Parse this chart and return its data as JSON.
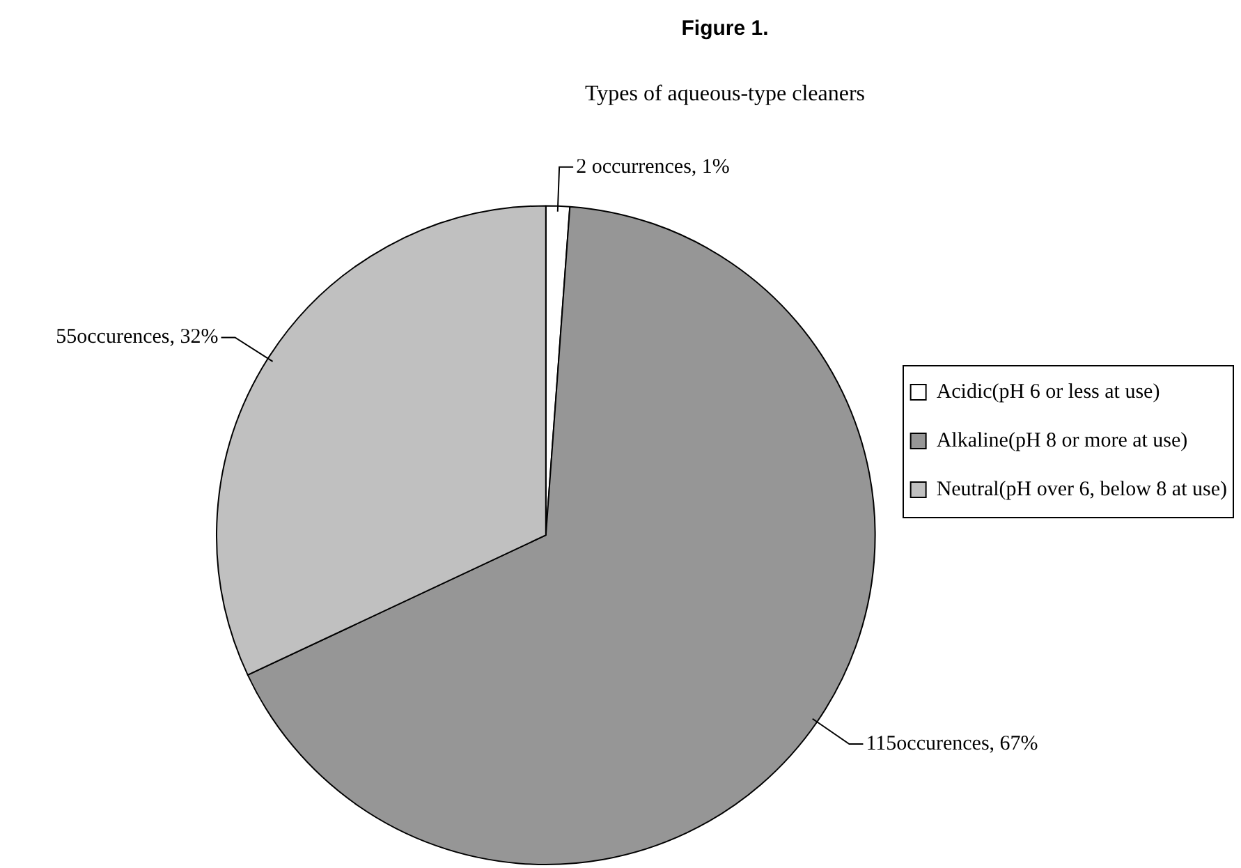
{
  "chart_data": {
    "type": "pie",
    "title": "Figure 1.",
    "subtitle": "Types of aqueous-type cleaners",
    "categories": [
      "Acidic(pH 6 or less at use)",
      "Alkaline(pH 8 or more at use)",
      "Neutral(pH over 6, below 8 at use)"
    ],
    "values": [
      2,
      115,
      55
    ],
    "value_labels": [
      "2 occurrences, 1%",
      "115occurences, 67%",
      "55occurences, 32%"
    ],
    "colors": [
      "#ffffff",
      "#969696",
      "#c0c0c0"
    ],
    "legend": "right"
  }
}
